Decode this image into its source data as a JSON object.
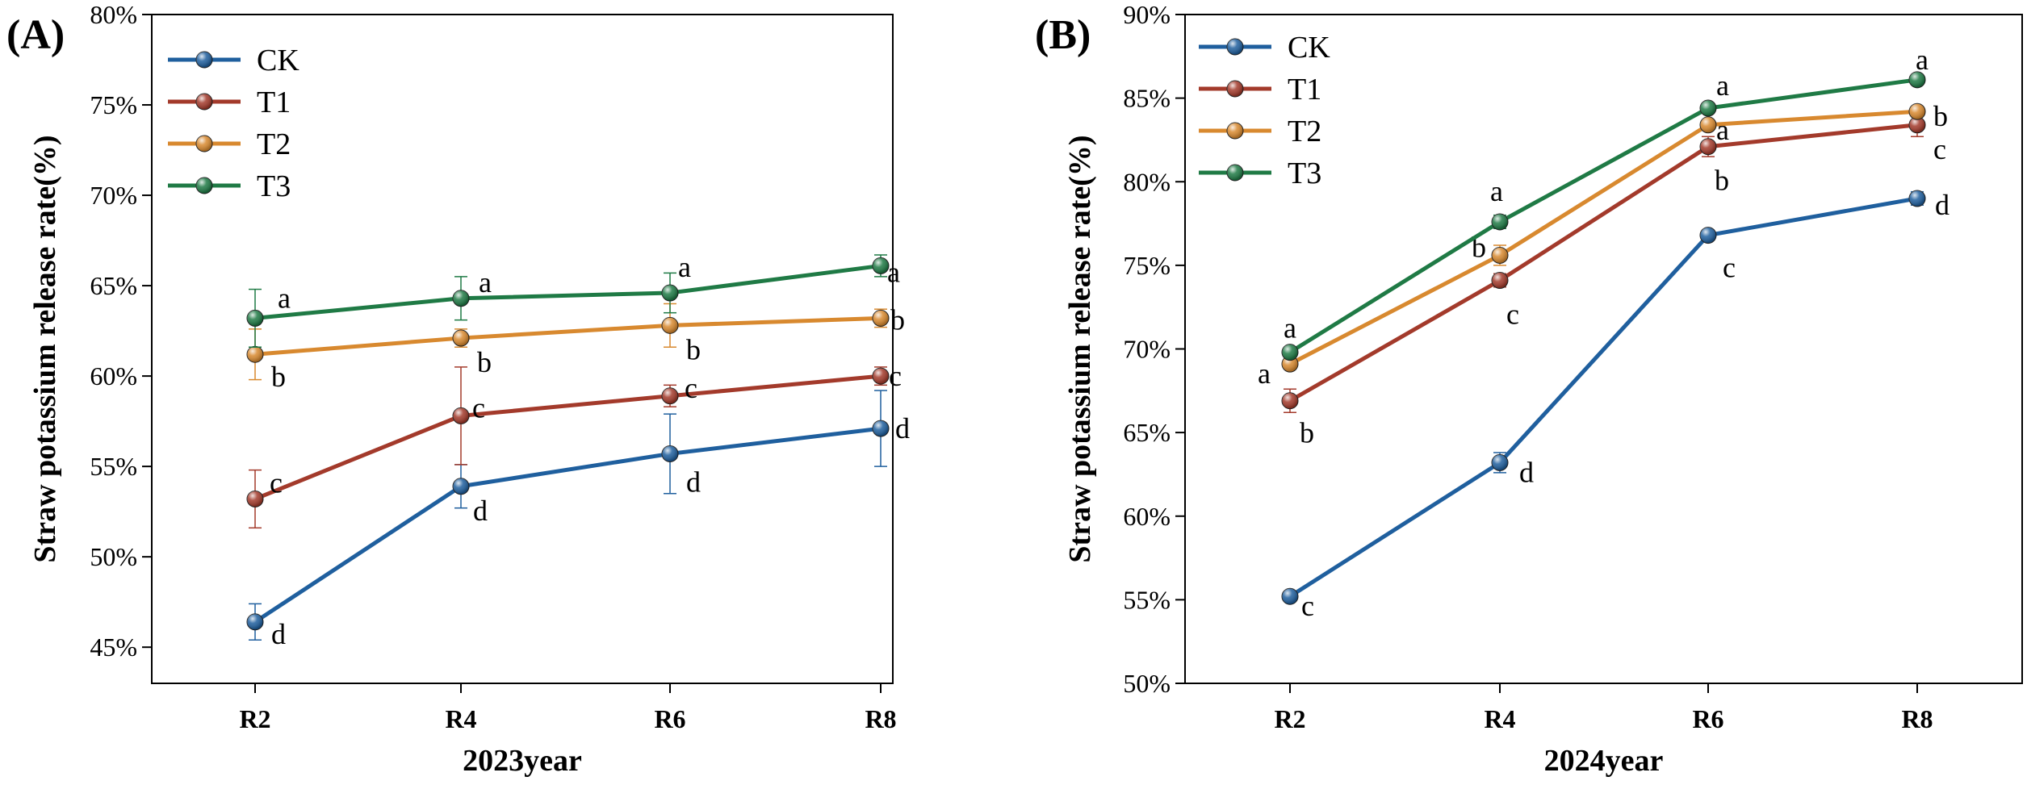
{
  "chart_data": [
    {
      "type": "line",
      "panel_label": "(A)",
      "xlabel": "2023year",
      "ylabel": "Straw potassium release rate(%)",
      "categories": [
        "R2",
        "R4",
        "R6",
        "R8"
      ],
      "ylim": [
        43,
        80
      ],
      "yticks": [
        45,
        50,
        55,
        60,
        65,
        70,
        75,
        80
      ],
      "ytick_labels": [
        "45%",
        "50%",
        "55%",
        "60%",
        "65%",
        "70%",
        "75%",
        "80%"
      ],
      "legend_position": "top-left",
      "series": [
        {
          "name": "CK",
          "color": "#1f5f9e",
          "values": [
            46.4,
            53.9,
            55.7,
            57.1
          ],
          "errors": [
            1.0,
            1.2,
            2.2,
            2.1
          ],
          "letters": [
            "d",
            "d",
            "d",
            "d"
          ]
        },
        {
          "name": "T1",
          "color": "#a33a2b",
          "values": [
            53.2,
            57.8,
            58.9,
            60.0
          ],
          "errors": [
            1.6,
            2.7,
            0.6,
            0.5
          ],
          "letters": [
            "c",
            "c",
            "c",
            "c"
          ]
        },
        {
          "name": "T2",
          "color": "#d8892f",
          "values": [
            61.2,
            62.1,
            62.8,
            63.2
          ],
          "errors": [
            1.4,
            0.5,
            1.2,
            0.5
          ],
          "letters": [
            "b",
            "b",
            "b",
            "b"
          ]
        },
        {
          "name": "T3",
          "color": "#1f7a45",
          "values": [
            63.2,
            64.3,
            64.6,
            66.1
          ],
          "errors": [
            1.6,
            1.2,
            1.1,
            0.6
          ],
          "letters": [
            "a",
            "a",
            "a",
            "a"
          ]
        }
      ]
    },
    {
      "type": "line",
      "panel_label": "(B)",
      "xlabel": "2024year",
      "ylabel": "Straw potassium release rate(%)",
      "categories": [
        "R2",
        "R4",
        "R6",
        "R8"
      ],
      "ylim": [
        50,
        90
      ],
      "yticks": [
        50,
        55,
        60,
        65,
        70,
        75,
        80,
        85,
        90
      ],
      "ytick_labels": [
        "50%",
        "55%",
        "60%",
        "65%",
        "70%",
        "75%",
        "80%",
        "85%",
        "90%"
      ],
      "legend_position": "top-left",
      "series": [
        {
          "name": "CK",
          "color": "#1f5f9e",
          "values": [
            55.2,
            63.2,
            76.8,
            79.0
          ],
          "errors": [
            0.2,
            0.6,
            0.3,
            0.4
          ],
          "letters": [
            "c",
            "d",
            "c",
            "d"
          ]
        },
        {
          "name": "T1",
          "color": "#a33a2b",
          "values": [
            66.9,
            74.1,
            82.1,
            83.4
          ],
          "errors": [
            0.7,
            0.4,
            0.6,
            0.7
          ],
          "letters": [
            "b",
            "c",
            "b",
            "c"
          ]
        },
        {
          "name": "T2",
          "color": "#d8892f",
          "values": [
            69.1,
            75.6,
            83.4,
            84.2
          ],
          "errors": [
            0.3,
            0.6,
            0.3,
            0.3
          ],
          "letters": [
            "a",
            "b",
            "a",
            "b"
          ]
        },
        {
          "name": "T3",
          "color": "#1f7a45",
          "values": [
            69.8,
            77.6,
            84.4,
            86.1
          ],
          "errors": [
            0.3,
            0.4,
            0.3,
            0.3
          ],
          "letters": [
            "a",
            "a",
            "a",
            "a"
          ]
        }
      ]
    }
  ]
}
